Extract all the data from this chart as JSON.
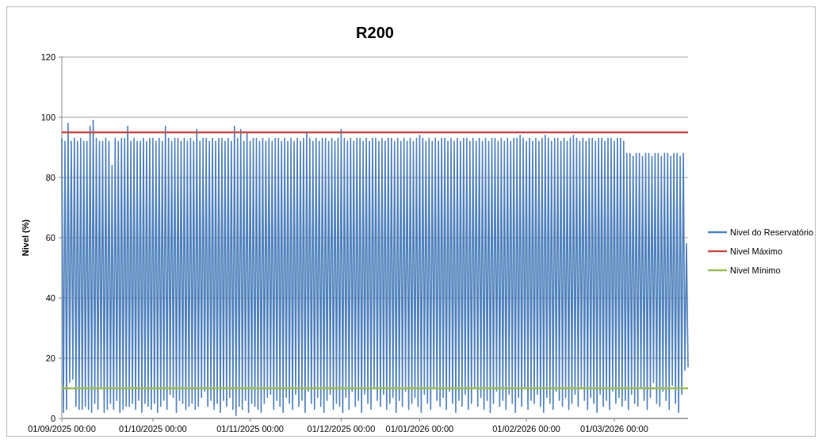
{
  "chart_data": {
    "type": "line",
    "title": "R200",
    "ylabel": "Nivel (%)",
    "categories": [
      "01/09/2025 00:00",
      null,
      null,
      null,
      null,
      null,
      null,
      null,
      null,
      null,
      null,
      null,
      null,
      null,
      null,
      null,
      null,
      null,
      null,
      null,
      null,
      null,
      null,
      null,
      null,
      null,
      null,
      null,
      null,
      null,
      null,
      null,
      null,
      null,
      null,
      null,
      null,
      null,
      null,
      null,
      null,
      null,
      null,
      null,
      null,
      null,
      null,
      null,
      null,
      null,
      null,
      null,
      null,
      null,
      null,
      null,
      null,
      null,
      "01/10/2025 00:00",
      null,
      null,
      null,
      null,
      null,
      null,
      null,
      null,
      null,
      null,
      null,
      null,
      null,
      null,
      null,
      null,
      null,
      null,
      null,
      null,
      null,
      null,
      null,
      null,
      null,
      null,
      null,
      null,
      null,
      null,
      null,
      null,
      null,
      null,
      null,
      null,
      null,
      null,
      null,
      null,
      null,
      null,
      null,
      null,
      null,
      null,
      null,
      null,
      null,
      null,
      null,
      null,
      null,
      null,
      null,
      null,
      null,
      null,
      null,
      null,
      null,
      "01/11/2025 00:00",
      null,
      null,
      null,
      null,
      null,
      null,
      null,
      null,
      null,
      null,
      null,
      null,
      null,
      null,
      null,
      null,
      null,
      null,
      null,
      null,
      null,
      null,
      null,
      null,
      null,
      null,
      null,
      null,
      null,
      null,
      null,
      null,
      null,
      null,
      null,
      null,
      null,
      null,
      null,
      null,
      null,
      null,
      null,
      null,
      null,
      null,
      null,
      null,
      null,
      null,
      null,
      null,
      null,
      null,
      null,
      null,
      null,
      "01/12/2025 00:00",
      null,
      null,
      null,
      null,
      null,
      null,
      null,
      null,
      null,
      null,
      null,
      null,
      null,
      null,
      null,
      null,
      null,
      null,
      null,
      null,
      null,
      null,
      null,
      null,
      null,
      null,
      null,
      null,
      null,
      null,
      null,
      null,
      null,
      null,
      null,
      null,
      null,
      null,
      null,
      null,
      null,
      null,
      null,
      null,
      null,
      null,
      null,
      null,
      null,
      "01/01/2026 00:00",
      null,
      null,
      null,
      null,
      null,
      null,
      null,
      null,
      null,
      null,
      null,
      null,
      null,
      null,
      null,
      null,
      null,
      null,
      null,
      null,
      null,
      null,
      null,
      null,
      null,
      null,
      null,
      null,
      null,
      null,
      null,
      null,
      null,
      null,
      null,
      null,
      null,
      null,
      null,
      null,
      null,
      null,
      null,
      null,
      null,
      null,
      null,
      null,
      null,
      null,
      null,
      null,
      null,
      null,
      null,
      null,
      null,
      null,
      null,
      null,
      null,
      null,
      null,
      null,
      null,
      null,
      null,
      "01/02/2026 00:00",
      null,
      null,
      null,
      null,
      null,
      null,
      null,
      null,
      null,
      null,
      null,
      null,
      null,
      null,
      null,
      null,
      null,
      null,
      null,
      null,
      null,
      null,
      null,
      null,
      null,
      null,
      null,
      null,
      null,
      null,
      null,
      null,
      null,
      null,
      null,
      null,
      null,
      null,
      null,
      null,
      null,
      null,
      null,
      null,
      null,
      null,
      null,
      null,
      null,
      null,
      null,
      null,
      null,
      null,
      null,
      "01/03/2026 00:00",
      null,
      null,
      null,
      null,
      null,
      null,
      null,
      null,
      null,
      null,
      null,
      null,
      null,
      null,
      null,
      null,
      null,
      null,
      null,
      null,
      null,
      null,
      null,
      null,
      null,
      null,
      null,
      null,
      null,
      null,
      null,
      null,
      null,
      null,
      null,
      null,
      null,
      null,
      null,
      null,
      null,
      null,
      null,
      null,
      null,
      null,
      null
    ],
    "ylim": [
      0,
      120
    ],
    "yticks": [
      0,
      20,
      40,
      60,
      80,
      100,
      120
    ],
    "grid": "y",
    "legend": "right",
    "ref_lines": [
      {
        "axis": "y",
        "value": 95,
        "label": "Nivel Máximo",
        "color": "#c0504d"
      },
      {
        "axis": "y",
        "value": 10,
        "label": "Nivel Mínimo",
        "color": "#9bbb59"
      }
    ],
    "series": [
      {
        "name": "Nivel do Reservatório",
        "color": "#4f81bd",
        "values": [
          93,
          2,
          92,
          3,
          98,
          12,
          92,
          13,
          93,
          4,
          92,
          3,
          93,
          3,
          92,
          4,
          92,
          3,
          97,
          2,
          99,
          5,
          93,
          3,
          92,
          10,
          92,
          2,
          93,
          3,
          92,
          5,
          84,
          3,
          93,
          6,
          92,
          2,
          93,
          3,
          93,
          4,
          97,
          4,
          92,
          5,
          93,
          3,
          92,
          6,
          92,
          2,
          93,
          5,
          92,
          4,
          93,
          3,
          93,
          5,
          92,
          2,
          93,
          4,
          92,
          6,
          97,
          3,
          93,
          8,
          92,
          7,
          93,
          2,
          93,
          6,
          92,
          5,
          93,
          3,
          92,
          4,
          93,
          5,
          92,
          3,
          96,
          4,
          92,
          7,
          93,
          9,
          93,
          4,
          92,
          6,
          93,
          3,
          92,
          5,
          93,
          2,
          93,
          6,
          92,
          4,
          93,
          7,
          92,
          3,
          97,
          1,
          93,
          4,
          96,
          3,
          92,
          6,
          95,
          2,
          92,
          5,
          93,
          4,
          93,
          3,
          92,
          2,
          93,
          5,
          92,
          7,
          93,
          8,
          92,
          3,
          93,
          6,
          93,
          4,
          92,
          2,
          93,
          7,
          92,
          5,
          93,
          3,
          92,
          8,
          93,
          4,
          92,
          6,
          93,
          2,
          95,
          9,
          93,
          5,
          92,
          3,
          93,
          7,
          92,
          4,
          93,
          2,
          93,
          6,
          92,
          8,
          93,
          3,
          92,
          5,
          93,
          4,
          96,
          2,
          93,
          7,
          92,
          3,
          93,
          9,
          92,
          4,
          93,
          6,
          93,
          2,
          92,
          8,
          93,
          5,
          92,
          3,
          93,
          10,
          93,
          6,
          92,
          4,
          93,
          8,
          92,
          3,
          93,
          5,
          93,
          7,
          92,
          2,
          93,
          6,
          92,
          4,
          93,
          9,
          92,
          3,
          93,
          5,
          92,
          7,
          93,
          4,
          94,
          2,
          93,
          8,
          92,
          5,
          93,
          3,
          92,
          10,
          93,
          6,
          92,
          4,
          93,
          7,
          93,
          3,
          92,
          9,
          93,
          5,
          92,
          2,
          93,
          6,
          92,
          4,
          93,
          8,
          93,
          3,
          92,
          5,
          93,
          10,
          92,
          4,
          93,
          7,
          92,
          3,
          93,
          6,
          92,
          2,
          93,
          5,
          93,
          9,
          92,
          4,
          93,
          6,
          92,
          3,
          93,
          8,
          92,
          5,
          93,
          2,
          93,
          7,
          94,
          4,
          93,
          10,
          92,
          3,
          93,
          6,
          92,
          5,
          93,
          8,
          92,
          4,
          93,
          2,
          94,
          7,
          93,
          5,
          92,
          3,
          93,
          9,
          93,
          6,
          92,
          4,
          93,
          7,
          92,
          3,
          93,
          5,
          94,
          8,
          93,
          4,
          92,
          10,
          93,
          6,
          92,
          3,
          93,
          7,
          93,
          5,
          92,
          2,
          93,
          8,
          93,
          4,
          92,
          6,
          93,
          3,
          93,
          9,
          92,
          5,
          93,
          7,
          93,
          4,
          92,
          6,
          88,
          3,
          88,
          8,
          87,
          5,
          88,
          4,
          88,
          10,
          87,
          6,
          88,
          3,
          88,
          7,
          87,
          12,
          88,
          5,
          88,
          4,
          87,
          9,
          88,
          6,
          88,
          3,
          87,
          11,
          88,
          5,
          88,
          2,
          87,
          8,
          88,
          16,
          58,
          17
        ]
      }
    ]
  }
}
